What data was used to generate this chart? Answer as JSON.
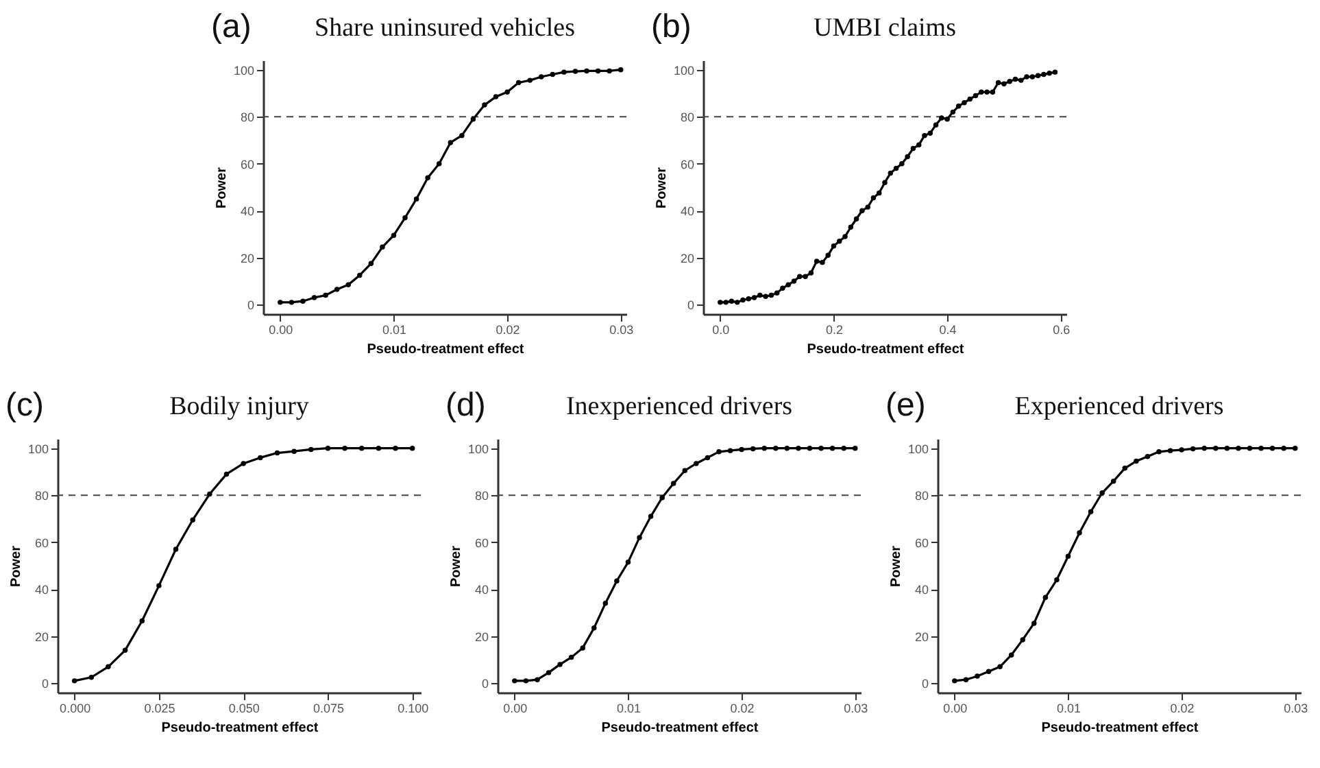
{
  "chart_data": [
    {
      "type": "line",
      "title": "Share uninsured vehicles",
      "annotations": [
        "(a)"
      ],
      "xlabel": "Pseudo-treatment effect",
      "ylabel": "Power",
      "x": [
        0,
        0.001,
        0.002,
        0.003,
        0.004,
        0.005,
        0.006,
        0.007,
        0.008,
        0.009,
        0.01,
        0.011,
        0.012,
        0.013,
        0.014,
        0.015,
        0.016,
        0.017,
        0.018,
        0.019,
        0.02,
        0.021,
        0.022,
        0.023,
        0.024,
        0.025,
        0.026,
        0.027,
        0.028,
        0.029,
        0.03
      ],
      "series": [
        {
          "color": "#000000",
          "values": [
            1,
            1,
            1.5,
            3,
            4,
            6.5,
            8.5,
            12.5,
            17.5,
            24.5,
            29.5,
            37,
            45,
            54,
            60,
            69,
            72,
            79,
            85,
            88.5,
            90.5,
            94.5,
            95.5,
            97,
            98,
            99,
            99.3,
            99.5,
            99.5,
            99.5,
            100
          ]
        }
      ],
      "xlim": [
        -0.0015,
        0.0305
      ],
      "ylim": [
        -4,
        104
      ],
      "xticks": [
        {
          "value": 0,
          "label": "0.00"
        },
        {
          "value": 0.01,
          "label": "0.01"
        },
        {
          "value": 0.02,
          "label": "0.02"
        },
        {
          "value": 0.03,
          "label": "0.03"
        }
      ],
      "yticks": [
        0,
        20,
        40,
        60,
        80,
        100
      ],
      "ref_lines": [
        {
          "axis": "y",
          "value": 80,
          "color": "#444444",
          "line_style": "dashed"
        }
      ],
      "marker": "circle",
      "line_style": "solid"
    },
    {
      "type": "line",
      "title": "UMBI claims",
      "annotations": [
        "(b)"
      ],
      "xlabel": "Pseudo-treatment effect",
      "ylabel": "Power",
      "x": [
        0,
        0.01,
        0.02,
        0.03,
        0.04,
        0.05,
        0.06,
        0.07,
        0.08,
        0.09,
        0.1,
        0.11,
        0.12,
        0.13,
        0.14,
        0.15,
        0.16,
        0.17,
        0.18,
        0.19,
        0.2,
        0.21,
        0.22,
        0.23,
        0.24,
        0.25,
        0.26,
        0.27,
        0.28,
        0.29,
        0.3,
        0.31,
        0.32,
        0.33,
        0.34,
        0.35,
        0.36,
        0.37,
        0.38,
        0.39,
        0.4,
        0.41,
        0.42,
        0.43,
        0.44,
        0.45,
        0.46,
        0.47,
        0.48,
        0.49,
        0.5,
        0.51,
        0.52,
        0.53,
        0.54,
        0.55,
        0.56,
        0.57,
        0.58,
        0.59
      ],
      "series": [
        {
          "color": "#000000",
          "values": [
            1,
            1,
            1.5,
            1,
            2,
            2.5,
            3,
            4,
            3.5,
            4,
            5,
            7,
            8.5,
            10,
            12,
            12,
            13.5,
            18.5,
            18,
            21,
            25,
            27,
            29,
            33,
            36.5,
            40,
            41.5,
            45.5,
            47.5,
            52,
            56,
            58,
            60,
            63,
            66.5,
            68,
            72,
            73,
            76.5,
            79.5,
            79,
            82,
            84.5,
            86,
            87.5,
            89,
            90.5,
            90.5,
            90.5,
            94.5,
            94,
            95,
            96,
            95.5,
            97,
            97,
            97.5,
            98,
            98.5,
            99
          ]
        }
      ],
      "xlim": [
        -0.03,
        0.61
      ],
      "ylim": [
        -4,
        104
      ],
      "xticks": [
        {
          "value": 0,
          "label": "0.0"
        },
        {
          "value": 0.2,
          "label": "0.2"
        },
        {
          "value": 0.4,
          "label": "0.4"
        },
        {
          "value": 0.6,
          "label": "0.6"
        }
      ],
      "yticks": [
        0,
        20,
        40,
        60,
        80,
        100
      ],
      "ref_lines": [
        {
          "axis": "y",
          "value": 80,
          "color": "#444444",
          "line_style": "dashed"
        }
      ],
      "marker": "circle",
      "line_style": "solid"
    },
    {
      "type": "line",
      "title": "Bodily injury",
      "annotations": [
        "(c)"
      ],
      "xlabel": "Pseudo-treatment effect",
      "ylabel": "Power",
      "x": [
        0,
        0.005,
        0.01,
        0.015,
        0.02,
        0.025,
        0.03,
        0.035,
        0.04,
        0.045,
        0.05,
        0.055,
        0.06,
        0.065,
        0.07,
        0.075,
        0.08,
        0.085,
        0.09,
        0.095,
        0.1
      ],
      "series": [
        {
          "color": "#000000",
          "values": [
            1,
            2.5,
            7,
            14,
            26.5,
            41.5,
            57,
            69.5,
            80.5,
            89,
            93.5,
            96,
            98,
            98.7,
            99.5,
            100,
            100,
            100,
            100,
            100,
            100
          ]
        }
      ],
      "xlim": [
        -0.005,
        0.1025
      ],
      "ylim": [
        -4,
        104
      ],
      "xticks": [
        {
          "value": 0,
          "label": "0.000"
        },
        {
          "value": 0.025,
          "label": "0.025"
        },
        {
          "value": 0.05,
          "label": "0.050"
        },
        {
          "value": 0.075,
          "label": "0.075"
        },
        {
          "value": 0.1,
          "label": "0.100"
        }
      ],
      "yticks": [
        0,
        20,
        40,
        60,
        80,
        100
      ],
      "ref_lines": [
        {
          "axis": "y",
          "value": 80,
          "color": "#444444",
          "line_style": "dashed"
        }
      ],
      "marker": "circle",
      "line_style": "solid"
    },
    {
      "type": "line",
      "title": "Inexperienced drivers",
      "annotations": [
        "(d)"
      ],
      "xlabel": "Pseudo-treatment effect",
      "ylabel": "Power",
      "x": [
        0,
        0.001,
        0.002,
        0.003,
        0.004,
        0.005,
        0.006,
        0.007,
        0.008,
        0.009,
        0.01,
        0.011,
        0.012,
        0.013,
        0.014,
        0.015,
        0.016,
        0.017,
        0.018,
        0.019,
        0.02,
        0.021,
        0.022,
        0.023,
        0.024,
        0.025,
        0.026,
        0.027,
        0.028,
        0.029,
        0.03
      ],
      "series": [
        {
          "color": "#000000",
          "values": [
            1,
            1,
            1.5,
            4.5,
            8,
            11,
            15,
            23.5,
            34,
            43.5,
            51.5,
            62,
            71,
            79,
            85,
            90.5,
            93.5,
            96,
            98.5,
            99,
            99.5,
            99.8,
            100,
            100,
            100,
            100,
            100,
            100,
            100,
            100,
            100
          ]
        }
      ],
      "xlim": [
        -0.0015,
        0.0305
      ],
      "ylim": [
        -4,
        104
      ],
      "xticks": [
        {
          "value": 0,
          "label": "0.00"
        },
        {
          "value": 0.01,
          "label": "0.01"
        },
        {
          "value": 0.02,
          "label": "0.02"
        },
        {
          "value": 0.03,
          "label": "0.03"
        }
      ],
      "yticks": [
        0,
        20,
        40,
        60,
        80,
        100
      ],
      "ref_lines": [
        {
          "axis": "y",
          "value": 80,
          "color": "#444444",
          "line_style": "dashed"
        }
      ],
      "marker": "circle",
      "line_style": "solid"
    },
    {
      "type": "line",
      "title": "Experienced drivers",
      "annotations": [
        "(e)"
      ],
      "xlabel": "Pseudo-treatment effect",
      "ylabel": "Power",
      "x": [
        0,
        0.001,
        0.002,
        0.003,
        0.004,
        0.005,
        0.006,
        0.007,
        0.008,
        0.009,
        0.01,
        0.011,
        0.012,
        0.013,
        0.014,
        0.015,
        0.016,
        0.017,
        0.018,
        0.019,
        0.02,
        0.021,
        0.022,
        0.023,
        0.024,
        0.025,
        0.026,
        0.027,
        0.028,
        0.029,
        0.03
      ],
      "series": [
        {
          "color": "#000000",
          "values": [
            1,
            1.5,
            3,
            5,
            7,
            12,
            18.5,
            25.5,
            36.5,
            44,
            54,
            64,
            73,
            81,
            86,
            91.5,
            94.5,
            96.5,
            98.5,
            99,
            99.3,
            99.8,
            100,
            100,
            100,
            100,
            100,
            100,
            100,
            100,
            100
          ]
        }
      ],
      "xlim": [
        -0.0015,
        0.0305
      ],
      "ylim": [
        -4,
        104
      ],
      "xticks": [
        {
          "value": 0,
          "label": "0.00"
        },
        {
          "value": 0.01,
          "label": "0.01"
        },
        {
          "value": 0.02,
          "label": "0.02"
        },
        {
          "value": 0.03,
          "label": "0.03"
        }
      ],
      "yticks": [
        0,
        20,
        40,
        60,
        80,
        100
      ],
      "ref_lines": [
        {
          "axis": "y",
          "value": 80,
          "color": "#444444",
          "line_style": "dashed"
        }
      ],
      "marker": "circle",
      "line_style": "solid"
    }
  ]
}
